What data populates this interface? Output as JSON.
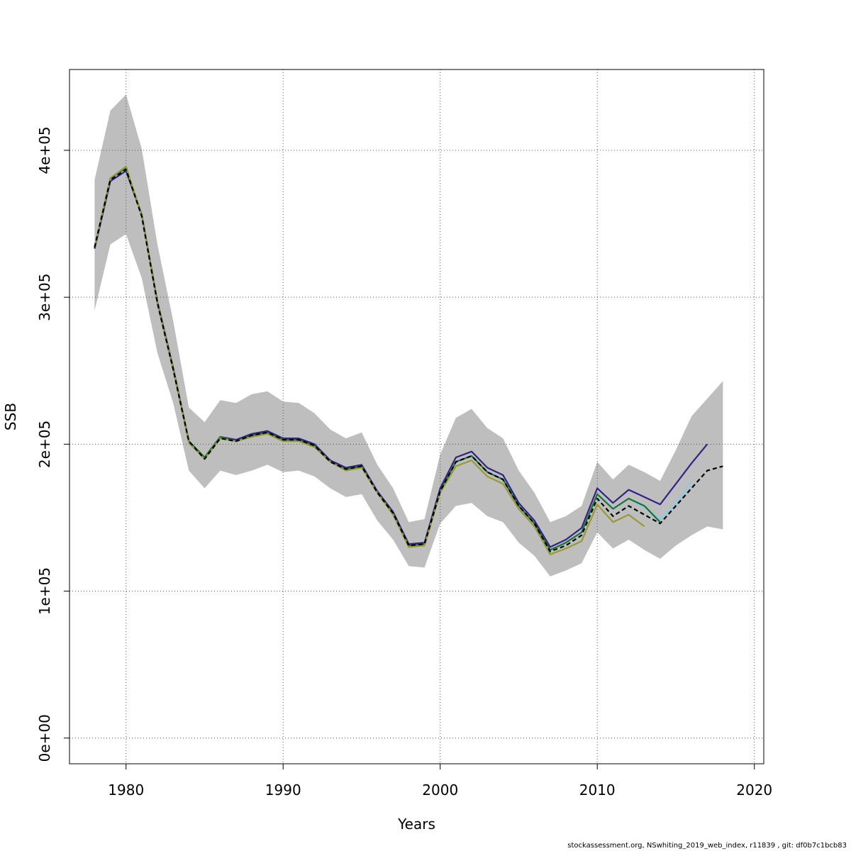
{
  "chart_data": {
    "type": "line",
    "title": "",
    "xlabel": "Years",
    "ylabel": "SSB",
    "xlim": [
      1976.4,
      2020.6
    ],
    "ylim": [
      -17500,
      455000
    ],
    "x_ticks": [
      1980,
      1990,
      2000,
      2010,
      2020
    ],
    "x_tick_labels": [
      "1980",
      "1990",
      "2000",
      "2010",
      "2020"
    ],
    "y_ticks": [
      0,
      100000,
      200000,
      300000,
      400000
    ],
    "y_tick_labels": [
      "0e+00",
      "1e+05",
      "2e+05",
      "3e+05",
      "4e+05"
    ],
    "grid": true,
    "band": {
      "color": "#bebebe",
      "x": [
        1978,
        1979,
        1980,
        1981,
        1982,
        1983,
        1984,
        1985,
        1986,
        1987,
        1988,
        1989,
        1990,
        1991,
        1992,
        1993,
        1994,
        1995,
        1996,
        1997,
        1998,
        1999,
        2000,
        2001,
        2002,
        2003,
        2004,
        2005,
        2006,
        2007,
        2008,
        2009,
        2010,
        2011,
        2012,
        2013,
        2014,
        2015,
        2016,
        2017,
        2018
      ],
      "lower": [
        291000,
        336000,
        343000,
        313000,
        262000,
        228000,
        182000,
        170000,
        182000,
        179000,
        182000,
        186000,
        181000,
        182000,
        178000,
        170000,
        164000,
        166000,
        148000,
        135000,
        117000,
        116000,
        146000,
        158000,
        160000,
        151000,
        147000,
        133000,
        124000,
        110000,
        114000,
        119000,
        140000,
        129000,
        135000,
        128000,
        122000,
        131000,
        138000,
        144000,
        142000
      ],
      "upper": [
        380000,
        427000,
        438000,
        401000,
        336000,
        284000,
        225000,
        215000,
        230000,
        228000,
        234000,
        236000,
        229000,
        228000,
        221000,
        210000,
        204000,
        208000,
        186000,
        170000,
        147000,
        149000,
        193000,
        218000,
        224000,
        211000,
        204000,
        182000,
        167000,
        147000,
        151000,
        158000,
        188000,
        176000,
        186000,
        181000,
        175000,
        196000,
        219000,
        231000,
        243000
      ]
    },
    "series": [
      {
        "color": "#332288",
        "dashed": false,
        "x": [
          1978,
          1979,
          1980,
          1981,
          1982,
          1983,
          1984,
          1985,
          1986,
          1987,
          1988,
          1989,
          1990,
          1991,
          1992,
          1993,
          1994,
          1995,
          1996,
          1997,
          1998,
          1999,
          2000,
          2001,
          2002,
          2003,
          2004,
          2005,
          2006,
          2007,
          2008,
          2009,
          2010,
          2011,
          2012,
          2013,
          2014,
          2015,
          2016,
          2017
        ],
        "y": [
          333000,
          379000,
          386000,
          356000,
          297000,
          252000,
          202000,
          191000,
          205000,
          203000,
          207000,
          209000,
          204000,
          204000,
          200000,
          189000,
          184000,
          186000,
          168000,
          154000,
          132000,
          133000,
          170000,
          191000,
          195000,
          184000,
          179000,
          160000,
          148000,
          130000,
          135000,
          143000,
          170000,
          160000,
          169000,
          164000,
          159000,
          173000,
          187000,
          200000
        ]
      },
      {
        "color": "#88ccee",
        "dashed": false,
        "x": [
          2010,
          2011,
          2012,
          2013,
          2014,
          2015,
          2016
        ],
        "y": [
          166000,
          156000,
          163000,
          157000,
          149000,
          160000,
          174000
        ]
      },
      {
        "color": "#117733",
        "dashed": false,
        "x": [
          1978,
          1979,
          1980,
          1981,
          1982,
          1983,
          1984,
          1985,
          1986,
          1987,
          1988,
          1989,
          1990,
          1991,
          1992,
          1993,
          1994,
          1995,
          1996,
          1997,
          1998,
          1999,
          2000,
          2001,
          2002,
          2003,
          2004,
          2005,
          2006,
          2007,
          2008,
          2009,
          2010,
          2011,
          2012,
          2013,
          2014
        ],
        "y": [
          334000,
          381000,
          388000,
          356000,
          296000,
          251000,
          202000,
          191000,
          205000,
          202000,
          206000,
          208000,
          203000,
          203000,
          199000,
          188000,
          183000,
          185000,
          167000,
          153000,
          131000,
          132000,
          168000,
          188000,
          192000,
          181000,
          176000,
          158000,
          146000,
          128000,
          133000,
          140000,
          166000,
          156000,
          163000,
          158000,
          147000
        ]
      },
      {
        "color": "#999933",
        "dashed": false,
        "x": [
          1978,
          1979,
          1980,
          1981,
          1982,
          1983,
          1984,
          1985,
          1986,
          1987,
          1988,
          1989,
          1990,
          1991,
          1992,
          1993,
          1994,
          1995,
          1996,
          1997,
          1998,
          1999,
          2000,
          2001,
          2002,
          2003,
          2004,
          2005,
          2006,
          2007,
          2008,
          2009,
          2010,
          2011,
          2012,
          2013
        ],
        "y": [
          334000,
          381000,
          389000,
          355000,
          296000,
          251000,
          201000,
          190000,
          204000,
          202000,
          205000,
          207000,
          202000,
          202000,
          198000,
          188000,
          182000,
          184000,
          167000,
          152000,
          130000,
          131000,
          167000,
          185000,
          189000,
          178000,
          173000,
          156000,
          144000,
          125000,
          129000,
          134000,
          159000,
          147000,
          152000,
          144000
        ]
      },
      {
        "color": "#000000",
        "dashed": true,
        "x": [
          1978,
          1979,
          1980,
          1981,
          1982,
          1983,
          1984,
          1985,
          1986,
          1987,
          1988,
          1989,
          1990,
          1991,
          1992,
          1993,
          1994,
          1995,
          1996,
          1997,
          1998,
          1999,
          2000,
          2001,
          2002,
          2003,
          2004,
          2005,
          2006,
          2007,
          2008,
          2009,
          2010,
          2011,
          2012,
          2013,
          2014,
          2015,
          2016,
          2017,
          2018
        ],
        "y": [
          334000,
          380000,
          387000,
          355000,
          296000,
          251000,
          202000,
          190000,
          204000,
          202000,
          206000,
          208000,
          203000,
          203000,
          199000,
          188000,
          183000,
          185000,
          167000,
          153000,
          131000,
          132000,
          168000,
          188000,
          192000,
          181000,
          176000,
          158000,
          146000,
          127000,
          131000,
          138000,
          163000,
          151000,
          158000,
          152000,
          146000,
          158000,
          170000,
          182000,
          185000
        ]
      }
    ]
  },
  "footer_text": "stockassessment.org, NSwhiting_2019_web_index, r11839 , git: df0b7c1bcb83"
}
